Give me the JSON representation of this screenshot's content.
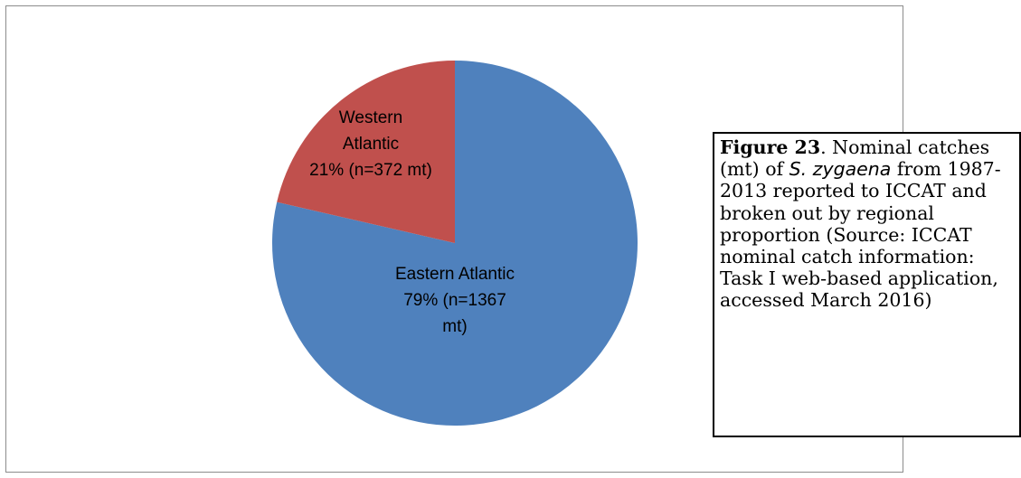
{
  "chart_data": {
    "type": "pie",
    "title": "",
    "slices": [
      {
        "name": "Eastern Atlantic",
        "value": 1367,
        "percent": 79,
        "label_lines": [
          "Eastern Atlantic",
          "79% (n=1367",
          "mt)"
        ],
        "color": "#4f81bd"
      },
      {
        "name": "Western Atlantic",
        "value": 372,
        "percent": 21,
        "label_lines": [
          "Western",
          "Atlantic",
          "21% (n=372 mt)"
        ],
        "color": "#c0504d"
      }
    ],
    "legend": "none"
  },
  "caption": {
    "figure_label": "Figure 23",
    "text_1": ". Nominal catches (mt) of ",
    "species_italic": "S. zygaena",
    "text_2": " from 1987-2013 reported to ICCAT and broken out by regional proportion (Source: ICCAT nominal catch information: Task I web-based application, accessed March 2016)"
  }
}
